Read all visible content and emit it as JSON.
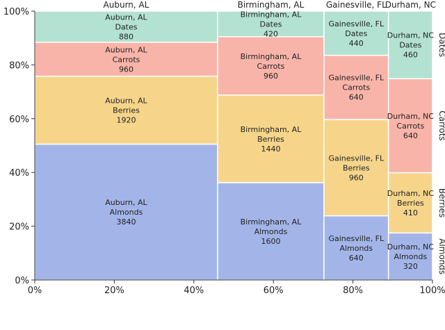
{
  "chart_data": {
    "type": "marimekko",
    "categories": [
      "Auburn, AL",
      "Birmingham, AL",
      "Gainesville, FL",
      "Durham, NC"
    ],
    "series": [
      {
        "name": "Almonds",
        "values": [
          3840,
          1600,
          640,
          320
        ],
        "color": "#a3b5e8"
      },
      {
        "name": "Berries",
        "values": [
          1920,
          1440,
          960,
          410
        ],
        "color": "#f6d58b"
      },
      {
        "name": "Carrots",
        "values": [
          960,
          960,
          640,
          640
        ],
        "color": "#f9b4a9"
      },
      {
        "name": "Dates",
        "values": [
          880,
          420,
          440,
          460
        ],
        "color": "#b3e2d3"
      }
    ],
    "x_ticks": [
      "0%",
      "20%",
      "40%",
      "60%",
      "80%",
      "100%"
    ],
    "y_ticks": [
      "0%",
      "20%",
      "40%",
      "60%",
      "80%",
      "100%"
    ],
    "xlim": [
      0,
      100
    ],
    "ylim": [
      0,
      100
    ],
    "grid": false
  }
}
